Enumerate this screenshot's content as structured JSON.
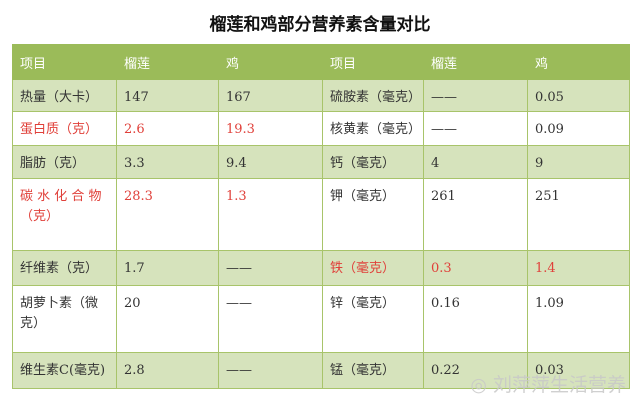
{
  "title": "榴莲和鸡部分营养素含量对比",
  "headers": [
    "项目",
    "榴莲",
    "鸡",
    "项目",
    "榴莲",
    "鸡"
  ],
  "rows": [
    {
      "cells": [
        "热量（大卡）",
        "147",
        "167",
        "硫胺素（毫克）",
        "——",
        "0.05"
      ],
      "red_left": false,
      "red_right": false
    },
    {
      "cells": [
        "蛋白质（克）",
        "2.6",
        "19.3",
        "核黄素（毫克）",
        "——",
        "0.09"
      ],
      "red_left": true,
      "red_right": false
    },
    {
      "cells": [
        "脂肪（克）",
        "3.3",
        "9.4",
        "钙（毫克）",
        "4",
        "9"
      ],
      "red_left": false,
      "red_right": false
    },
    {
      "cells": [
        "碳 水 化 合 物（克）",
        "28.3",
        "1.3",
        "钾（毫克）",
        "261",
        "251"
      ],
      "red_left": true,
      "red_right": false
    },
    {
      "cells": [
        "纤维素（克）",
        "1.7",
        "——",
        "铁（毫克）",
        "0.3",
        "1.4"
      ],
      "red_left": false,
      "red_right": true
    },
    {
      "cells": [
        "胡萝卜素（微克）",
        "20",
        "——",
        "锌（毫克）",
        "0.16",
        "1.09"
      ],
      "red_left": false,
      "red_right": false
    },
    {
      "cells": [
        "维生素C(毫克)",
        "2.8",
        "——",
        "锰（毫克）",
        "0.22",
        "0.03"
      ],
      "red_left": false,
      "red_right": false
    }
  ],
  "watermark": "刘萍萍生活营养",
  "colors": {
    "header": "#9bbb59",
    "band": "#d6e3bc",
    "highlight": "#e0403a"
  }
}
